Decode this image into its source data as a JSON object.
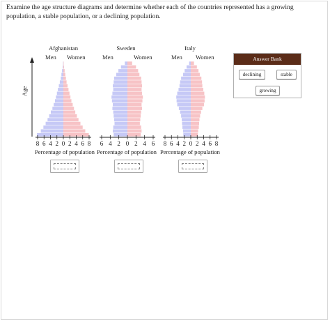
{
  "instructions": "Examine the age structure diagrams and determine whether each of the countries represented has a growing population, a stable population, or a declining population.",
  "y_axis_label": "Age",
  "x_axis_label": "Percentage of population",
  "colors": {
    "men": "#c6c9f6",
    "women": "#f7c3c6",
    "bank_header": "#5b2c18"
  },
  "countries": [
    {
      "name": "Afghanistan",
      "men_label": "Men",
      "women_label": "Women",
      "answer": ""
    },
    {
      "name": "Sweden",
      "men_label": "Men",
      "women_label": "Women",
      "answer": ""
    },
    {
      "name": "Italy",
      "men_label": "Men",
      "women_label": "Women",
      "answer": ""
    }
  ],
  "answer_bank": {
    "title": "Answer Bank",
    "options": [
      "declining",
      "stable",
      "growing"
    ]
  },
  "chart_data": [
    {
      "type": "bar",
      "title": "Afghanistan",
      "xlabel": "Percentage of population",
      "ylabel": "Age",
      "x_ticks": [
        "8",
        "6",
        "4",
        "2",
        "0",
        "2",
        "4",
        "6",
        "8"
      ],
      "xlim": [
        -8,
        8
      ],
      "series": [
        {
          "name": "Men",
          "values": [
            8.2,
            7.0,
            6.2,
            5.5,
            4.9,
            4.4,
            3.9,
            3.4,
            3.0,
            2.6,
            2.3,
            2.0,
            1.7,
            1.4,
            1.1,
            0.8,
            0.6,
            0.4,
            0.2,
            0.1
          ]
        },
        {
          "name": "Women",
          "values": [
            7.9,
            6.8,
            6.0,
            5.3,
            4.7,
            4.2,
            3.7,
            3.3,
            2.9,
            2.5,
            2.2,
            1.9,
            1.6,
            1.3,
            1.0,
            0.8,
            0.6,
            0.4,
            0.2,
            0.1
          ]
        }
      ]
    },
    {
      "type": "bar",
      "title": "Sweden",
      "xlabel": "Percentage of population",
      "ylabel": "Age",
      "x_ticks": [
        "6",
        "4",
        "2",
        "0",
        "2",
        "4",
        "6"
      ],
      "xlim": [
        -6,
        6
      ],
      "series": [
        {
          "name": "Men",
          "values": [
            3.2,
            3.4,
            3.3,
            3.0,
            3.1,
            3.2,
            3.3,
            3.5,
            3.4,
            3.6,
            3.7,
            3.5,
            3.3,
            3.4,
            3.2,
            3.1,
            2.6,
            2.1,
            1.5,
            0.6
          ]
        },
        {
          "name": "Women",
          "values": [
            3.1,
            3.3,
            3.2,
            2.9,
            3.0,
            3.1,
            3.2,
            3.4,
            3.3,
            3.5,
            3.6,
            3.4,
            3.3,
            3.4,
            3.3,
            3.2,
            2.8,
            2.5,
            2.0,
            1.1
          ]
        }
      ]
    },
    {
      "type": "bar",
      "title": "Italy",
      "xlabel": "Percentage of population",
      "ylabel": "Age",
      "x_ticks": [
        "8",
        "6",
        "4",
        "2",
        "0",
        "2",
        "4",
        "6",
        "8"
      ],
      "xlim": [
        -8,
        8
      ],
      "series": [
        {
          "name": "Men",
          "values": [
            2.3,
            2.4,
            2.6,
            2.7,
            2.8,
            3.0,
            3.3,
            3.7,
            4.2,
            4.4,
            4.5,
            4.2,
            3.8,
            3.5,
            3.3,
            3.0,
            2.4,
            1.9,
            1.3,
            0.5
          ]
        },
        {
          "name": "Women",
          "values": [
            2.2,
            2.3,
            2.5,
            2.6,
            2.7,
            2.9,
            3.2,
            3.6,
            4.1,
            4.3,
            4.4,
            4.2,
            3.9,
            3.6,
            3.5,
            3.3,
            2.8,
            2.4,
            1.9,
            1.0
          ]
        }
      ]
    }
  ]
}
